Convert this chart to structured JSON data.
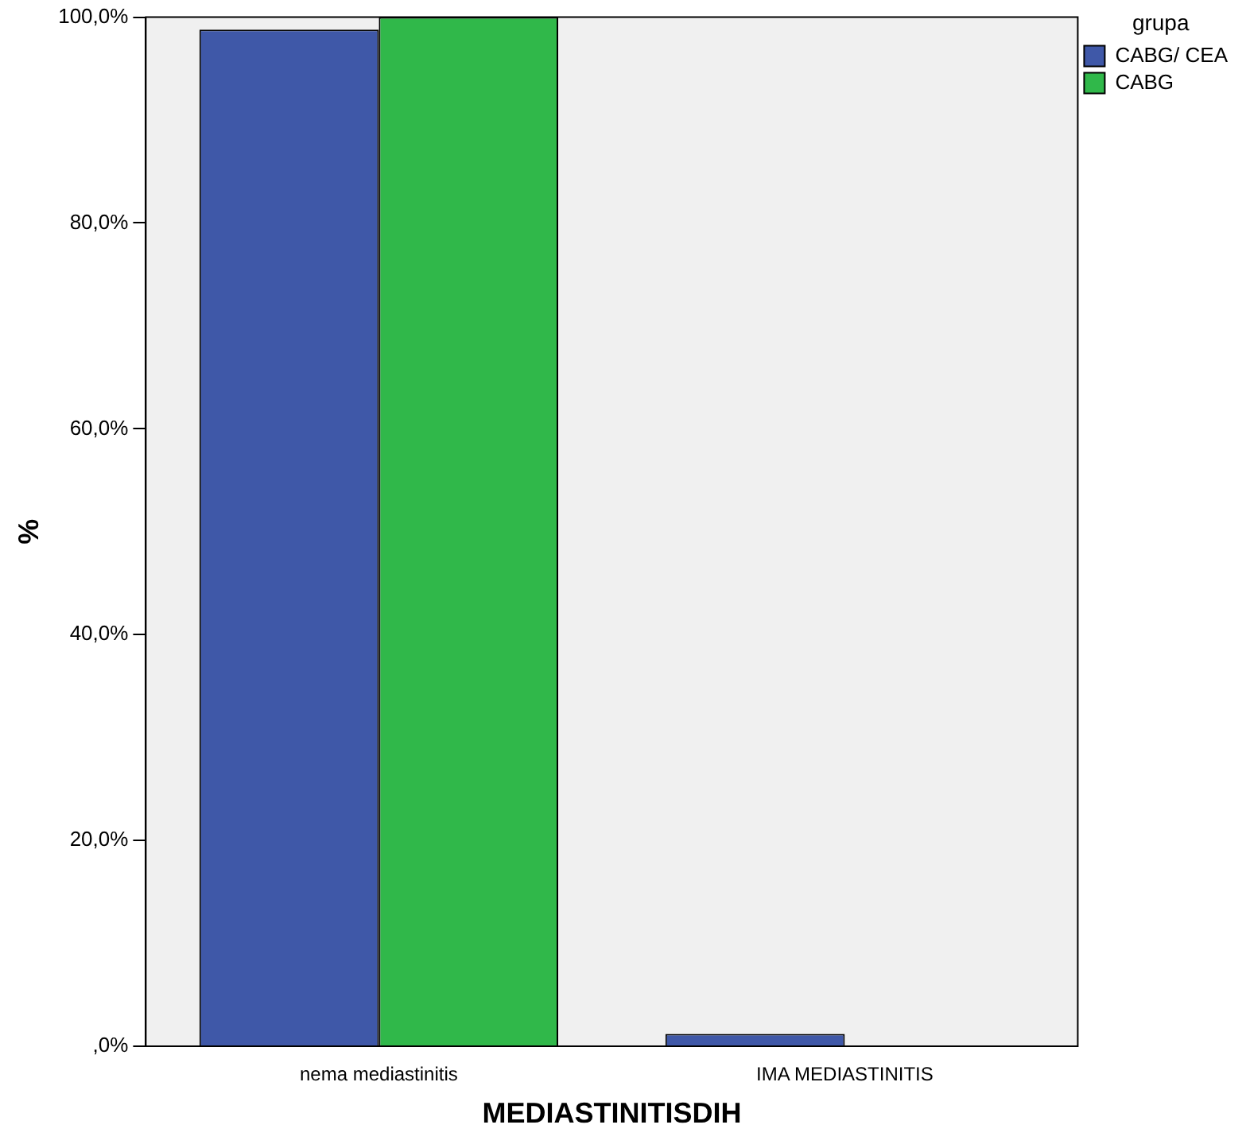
{
  "chart_data": {
    "type": "bar",
    "xlabel": "MEDIASTINITISDIH",
    "ylabel": "%",
    "legend_title": "grupa",
    "legend": "top right",
    "categories": [
      "nema mediastinitis",
      "IMA MEDIASTINITIS"
    ],
    "series": [
      {
        "name": "CABG/ CEA",
        "color": "#3f58a8",
        "values": [
          98.8,
          1.2
        ]
      },
      {
        "name": "CABG",
        "color": "#30b84a",
        "values": [
          100,
          0
        ]
      }
    ],
    "ylim": [
      0,
      100
    ],
    "yticks": [
      {
        "value": 0,
        "label": ",0%"
      },
      {
        "value": 20,
        "label": "20,0%"
      },
      {
        "value": 40,
        "label": "40,0%"
      },
      {
        "value": 60,
        "label": "60,0%"
      },
      {
        "value": 80,
        "label": "80,0%"
      },
      {
        "value": 100,
        "label": "100,0%"
      }
    ],
    "grid": false
  }
}
